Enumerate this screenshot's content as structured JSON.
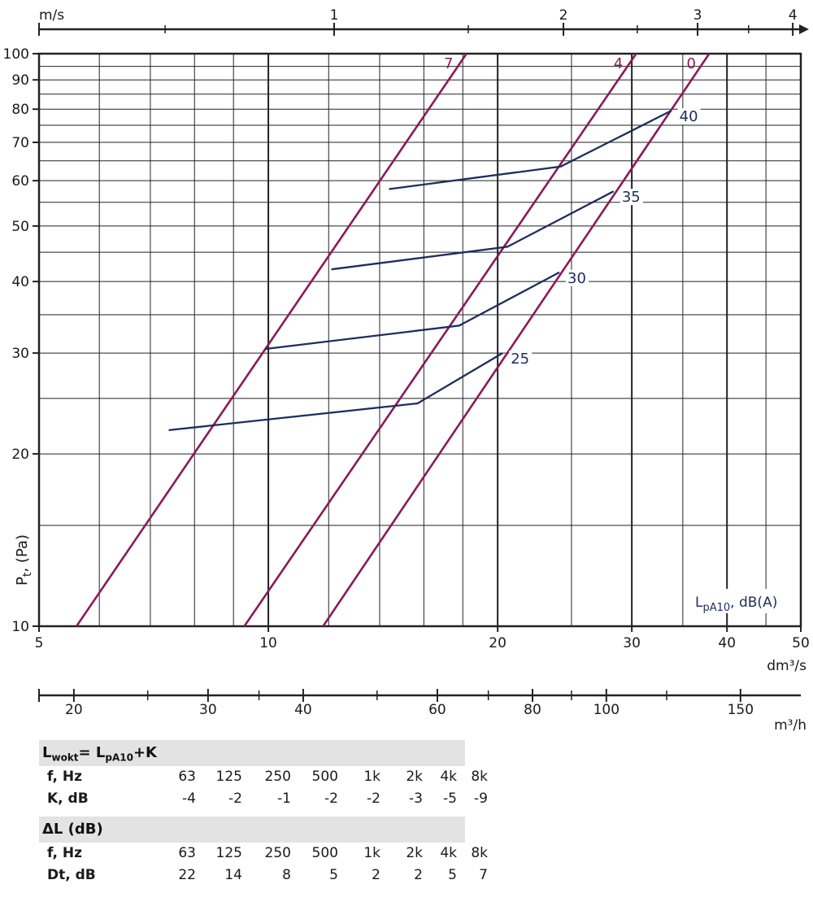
{
  "chart_data": {
    "type": "line",
    "x_axis": {
      "label": "dm³/s",
      "scale": "log",
      "range": [
        5,
        50
      ],
      "ticks": [
        "5",
        "10",
        "20",
        "30",
        "40",
        "50"
      ],
      "grid_values": [
        5,
        6,
        7,
        8,
        9,
        10,
        12,
        14,
        16,
        18,
        20,
        25,
        30,
        35,
        40,
        45,
        50
      ]
    },
    "y_axis": {
      "label": "P",
      "label_sub": "t",
      "label_suffix": ", (Pa)",
      "scale": "log",
      "range": [
        10,
        100
      ],
      "ticks": [
        "10",
        "20",
        "30",
        "40",
        "50",
        "60",
        "70",
        "80",
        "90",
        "100"
      ]
    },
    "top_axis": {
      "label": "m/s",
      "ticks": [
        "1",
        "2",
        "3",
        "4"
      ]
    },
    "bottom_axis_2": {
      "label": "m³/h",
      "ticks": [
        "20",
        "30",
        "40",
        "60",
        "80",
        "100",
        "150"
      ]
    },
    "series": [
      {
        "name": "7",
        "group": "damper",
        "points": [
          [
            5.6,
            10
          ],
          [
            18.2,
            100
          ]
        ]
      },
      {
        "name": "4",
        "group": "damper",
        "points": [
          [
            9.3,
            10
          ],
          [
            30.4,
            100
          ]
        ]
      },
      {
        "name": "0",
        "group": "damper",
        "points": [
          [
            11.8,
            10
          ],
          [
            37.9,
            100
          ]
        ]
      },
      {
        "name": "25",
        "group": "noise",
        "points": [
          [
            7.4,
            22
          ],
          [
            15.7,
            24.5
          ],
          [
            20.3,
            30
          ]
        ]
      },
      {
        "name": "30",
        "group": "noise",
        "points": [
          [
            9.9,
            30.5
          ],
          [
            17.8,
            33.5
          ],
          [
            24.1,
            41.5
          ]
        ]
      },
      {
        "name": "35",
        "group": "noise",
        "points": [
          [
            12.1,
            42
          ],
          [
            20.6,
            46
          ],
          [
            28.4,
            57.5
          ]
        ]
      },
      {
        "name": "40",
        "group": "noise",
        "points": [
          [
            14.4,
            58
          ],
          [
            24.2,
            63.5
          ],
          [
            33.8,
            79.5
          ]
        ]
      }
    ],
    "annotation": {
      "main": "L",
      "sub": "pA10",
      "rest": ", dB(A)"
    },
    "grid": true,
    "colors": {
      "damper": "#8a1a5a",
      "noise": "#1d2d5c",
      "grid": "#222222"
    }
  },
  "tables": [
    {
      "title_main": "L",
      "title_sub1": "wokt",
      "title_mid": "= L",
      "title_sub2": "pA10",
      "title_end": "+K",
      "rows": [
        {
          "label": "f, Hz",
          "values": [
            "63",
            "125",
            "250",
            "500",
            "1k",
            "2k",
            "4k",
            "8k"
          ]
        },
        {
          "label": "K, dB",
          "values": [
            "-4",
            "-2",
            "-1",
            "-2",
            "-2",
            "-3",
            "-5",
            "-9"
          ]
        }
      ]
    },
    {
      "title": "ΔL (dB)",
      "rows": [
        {
          "label": "f, Hz",
          "values": [
            "63",
            "125",
            "250",
            "500",
            "1k",
            "2k",
            "4k",
            "8k"
          ]
        },
        {
          "label": "Dt, dB",
          "values": [
            "22",
            "14",
            "8",
            "5",
            "2",
            "2",
            "5",
            "7"
          ]
        }
      ]
    }
  ]
}
